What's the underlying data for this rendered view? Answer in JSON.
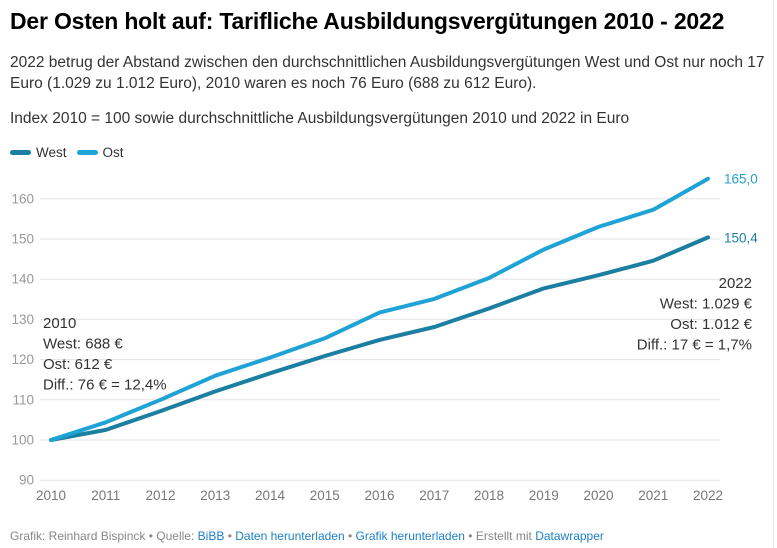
{
  "header": {
    "title": "Der Osten holt auf: Tarifliche Ausbildungsvergütungen 2010 - 2022",
    "description": "2022 betrug der Abstand zwischen den durchschnittlichen Ausbildungsvergütungen West und Ost nur noch 17 Euro (1.029 zu 1.012 Euro), 2010 waren es noch 76 Euro (688 zu 612 Euro).",
    "subtitle": "Index 2010 = 100 sowie durchschnittliche Ausbildungsvergütungen 2010 und 2022 in Euro"
  },
  "chart_data": {
    "type": "line",
    "title": "Der Osten holt auf: Tarifliche Ausbildungsvergütungen 2010 - 2022",
    "xlabel": "",
    "ylabel": "",
    "x": [
      "2010",
      "2011",
      "2012",
      "2013",
      "2014",
      "2015",
      "2016",
      "2017",
      "2018",
      "2019",
      "2020",
      "2021",
      "2022"
    ],
    "ylim": [
      90,
      165
    ],
    "yticks": [
      "90",
      "100",
      "110",
      "120",
      "130",
      "140",
      "150",
      "160"
    ],
    "ytick_values": [
      90,
      100,
      110,
      120,
      130,
      140,
      150,
      160
    ],
    "grid": true,
    "legend_position": "top-left",
    "series": [
      {
        "name": "West",
        "color": "#1b7fa1",
        "values": [
          100,
          102.5,
          107.2,
          112.1,
          116.6,
          120.9,
          124.9,
          128.1,
          132.7,
          137.7,
          141.0,
          144.6,
          150.4
        ],
        "end_label": "150,4"
      },
      {
        "name": "Ost",
        "color": "#1fa3d6",
        "values": [
          100,
          104.4,
          110.0,
          116.0,
          120.5,
          125.3,
          131.7,
          135.1,
          140.3,
          147.4,
          153.0,
          157.3,
          165.0
        ],
        "end_label": "165,0"
      }
    ],
    "annotations": {
      "start": {
        "year": "2010",
        "lines": [
          "West: 688 €",
          "Ost: 612 €",
          "Diff.: 76 € = 12,4%"
        ]
      },
      "end": {
        "year": "2022",
        "lines": [
          "West: 1.029 €",
          "Ost: 1.012 €",
          "Diff.: 17 € = 1,7%"
        ]
      }
    }
  },
  "footer": {
    "credit": "Grafik: Reinhard Bispinck",
    "source_label": "Quelle:",
    "source_link": "BiBB",
    "separator": "•",
    "download_data": "Daten herunterladen",
    "download_chart": "Grafik herunterladen",
    "made_with": "Erstellt mit",
    "made_with_link": "Datawrapper"
  }
}
